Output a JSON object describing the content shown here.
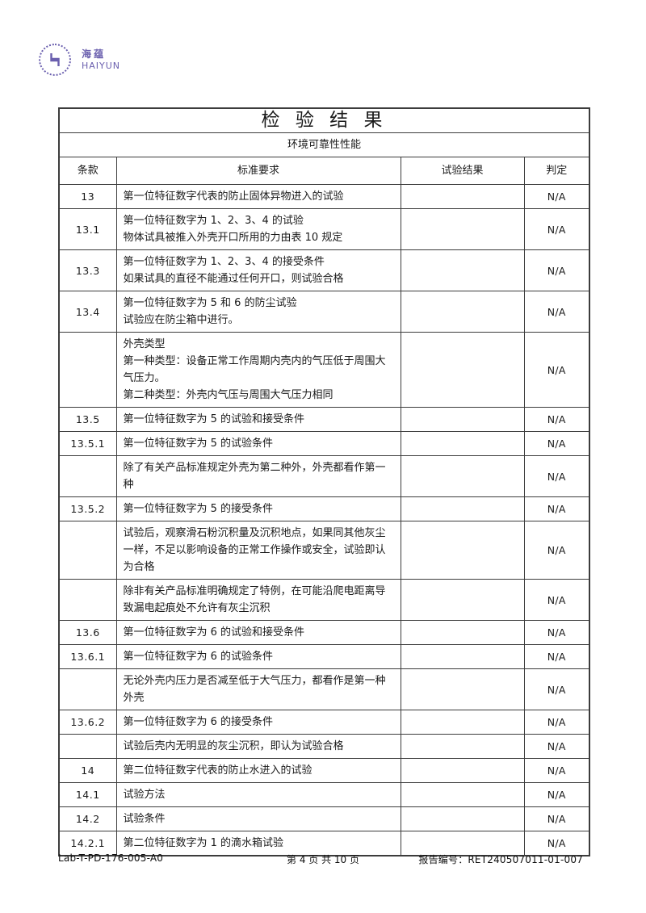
{
  "logo": {
    "zh": "海蕴",
    "en": "HAIYUN",
    "color": "#6a5fae"
  },
  "report": {
    "title": "检 验 结 果",
    "section": "环境可靠性性能",
    "columns": [
      "条款",
      "标准要求",
      "试验结果",
      "判定"
    ],
    "rows": [
      {
        "clause": "13",
        "requirement": "第一位特征数字代表的防止固体异物进入的试验",
        "result": "",
        "verdict": "N/A"
      },
      {
        "clause": "13.1",
        "requirement": [
          "第一位特征数字为 1、2、3、4 的试验",
          "物体试具被推入外壳开口所用的力由表 10 规定"
        ],
        "result": "",
        "verdict": "N/A"
      },
      {
        "clause": "13.3",
        "requirement": [
          "第一位特征数字为 1、2、3、4 的接受条件",
          "如果试具的直径不能通过任何开口，则试验合格"
        ],
        "result": "",
        "verdict": "N/A"
      },
      {
        "clause": "13.4",
        "requirement": [
          "第一位特征数字为 5 和 6 的防尘试验",
          "试验应在防尘箱中进行。"
        ],
        "result": "",
        "verdict": "N/A"
      },
      {
        "clause": "",
        "requirement": [
          "外壳类型",
          "第一种类型：设备正常工作周期内壳内的气压低于周围大气压力。",
          "第二种类型：外壳内气压与周围大气压力相同"
        ],
        "result": "",
        "verdict": "N/A"
      },
      {
        "clause": "13.5",
        "requirement": "第一位特征数字为 5 的试验和接受条件",
        "result": "",
        "verdict": "N/A"
      },
      {
        "clause": "13.5.1",
        "requirement": "第一位特征数字为 5 的试验条件",
        "result": "",
        "verdict": "N/A"
      },
      {
        "clause": "",
        "requirement": "除了有关产品标准规定外壳为第二种外，外壳都看作第一种",
        "result": "",
        "verdict": "N/A"
      },
      {
        "clause": "13.5.2",
        "requirement": "第一位特征数字为 5 的接受条件",
        "result": "",
        "verdict": "N/A"
      },
      {
        "clause": "",
        "requirement": "试验后，观察滑石粉沉积量及沉积地点，如果同其他灰尘一样，不足以影响设备的正常工作操作或安全，试验即认为合格",
        "result": "",
        "verdict": "N/A"
      },
      {
        "clause": "",
        "requirement": "除非有关产品标准明确规定了特例，在可能沿爬电距离导致漏电起痕处不允许有灰尘沉积",
        "result": "",
        "verdict": "N/A"
      },
      {
        "clause": "13.6",
        "requirement": "第一位特征数字为 6 的试验和接受条件",
        "result": "",
        "verdict": "N/A"
      },
      {
        "clause": "13.6.1",
        "requirement": "第一位特征数字为 6 的试验条件",
        "result": "",
        "verdict": "N/A"
      },
      {
        "clause": "",
        "requirement": "无论外壳内压力是否减至低于大气压力，都看作是第一种外壳",
        "result": "",
        "verdict": "N/A"
      },
      {
        "clause": "13.6.2",
        "requirement": "第一位特征数字为 6 的接受条件",
        "result": "",
        "verdict": "N/A"
      },
      {
        "clause": "",
        "requirement": "试验后壳内无明显的灰尘沉积，即认为试验合格",
        "result": "",
        "verdict": "N/A"
      },
      {
        "clause": "14",
        "requirement": "第二位特征数字代表的防止水进入的试验",
        "result": "",
        "verdict": "N/A"
      },
      {
        "clause": "14.1",
        "requirement": "试验方法",
        "result": "",
        "verdict": "N/A"
      },
      {
        "clause": "14.2",
        "requirement": "试验条件",
        "result": "",
        "verdict": "N/A"
      },
      {
        "clause": "14.2.1",
        "requirement": "第二位特征数字为 1 的滴水箱试验",
        "result": "",
        "verdict": "N/A"
      }
    ]
  },
  "footer": {
    "doc_no": "Lab-T-PD-176-005-A0",
    "page": "第 4 页  共 10 页",
    "report_no": "报告编号：RET240507011-01-007"
  }
}
